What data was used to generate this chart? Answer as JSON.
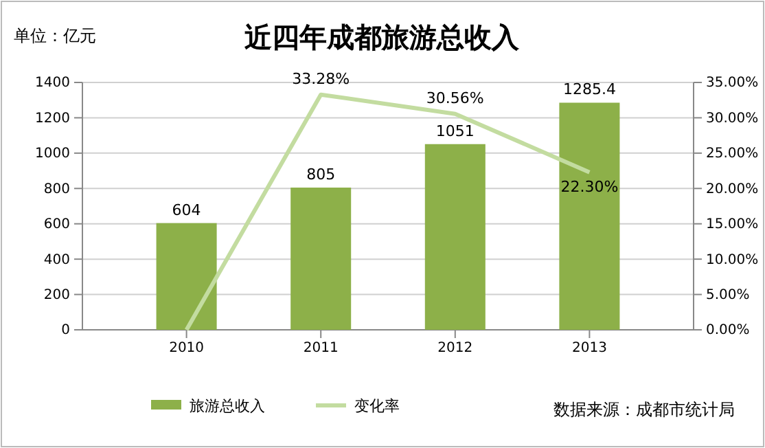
{
  "chart_data": {
    "type": "bar",
    "title": "近四年成都旅游总收入",
    "annotations": [
      "单位：亿元",
      "数据来源：成都市统计局"
    ],
    "categories": [
      "2010",
      "2011",
      "2012",
      "2013"
    ],
    "series": [
      {
        "name": "旅游总收入",
        "color": "#8db049",
        "values": [
          604,
          805,
          1051,
          1285.4
        ],
        "value_labels": [
          "604",
          "805",
          "1051",
          "1285.4"
        ]
      },
      {
        "name": "变化率",
        "type": "line",
        "axis": "y2",
        "color": "#c3dca0",
        "values": [
          0,
          33.28,
          30.56,
          22.3
        ],
        "value_labels": [
          null,
          "33.28%",
          "30.56%",
          "22.30%"
        ]
      }
    ],
    "ylim": [
      0,
      1400
    ],
    "yticks": [
      0,
      200,
      400,
      600,
      800,
      1000,
      1200,
      1400
    ],
    "y2lim": [
      0,
      35
    ],
    "y2ticks": [
      {
        "value": 0,
        "label": "0.00%"
      },
      {
        "value": 5,
        "label": "5.00%"
      },
      {
        "value": 10,
        "label": "10.00%"
      },
      {
        "value": 15,
        "label": "15.00%"
      },
      {
        "value": 20,
        "label": "20.00%"
      },
      {
        "value": 25,
        "label": "25.00%"
      },
      {
        "value": 30,
        "label": "30.00%"
      },
      {
        "value": 35,
        "label": "35.00%"
      }
    ],
    "grid": "y",
    "legend": "bottom"
  }
}
